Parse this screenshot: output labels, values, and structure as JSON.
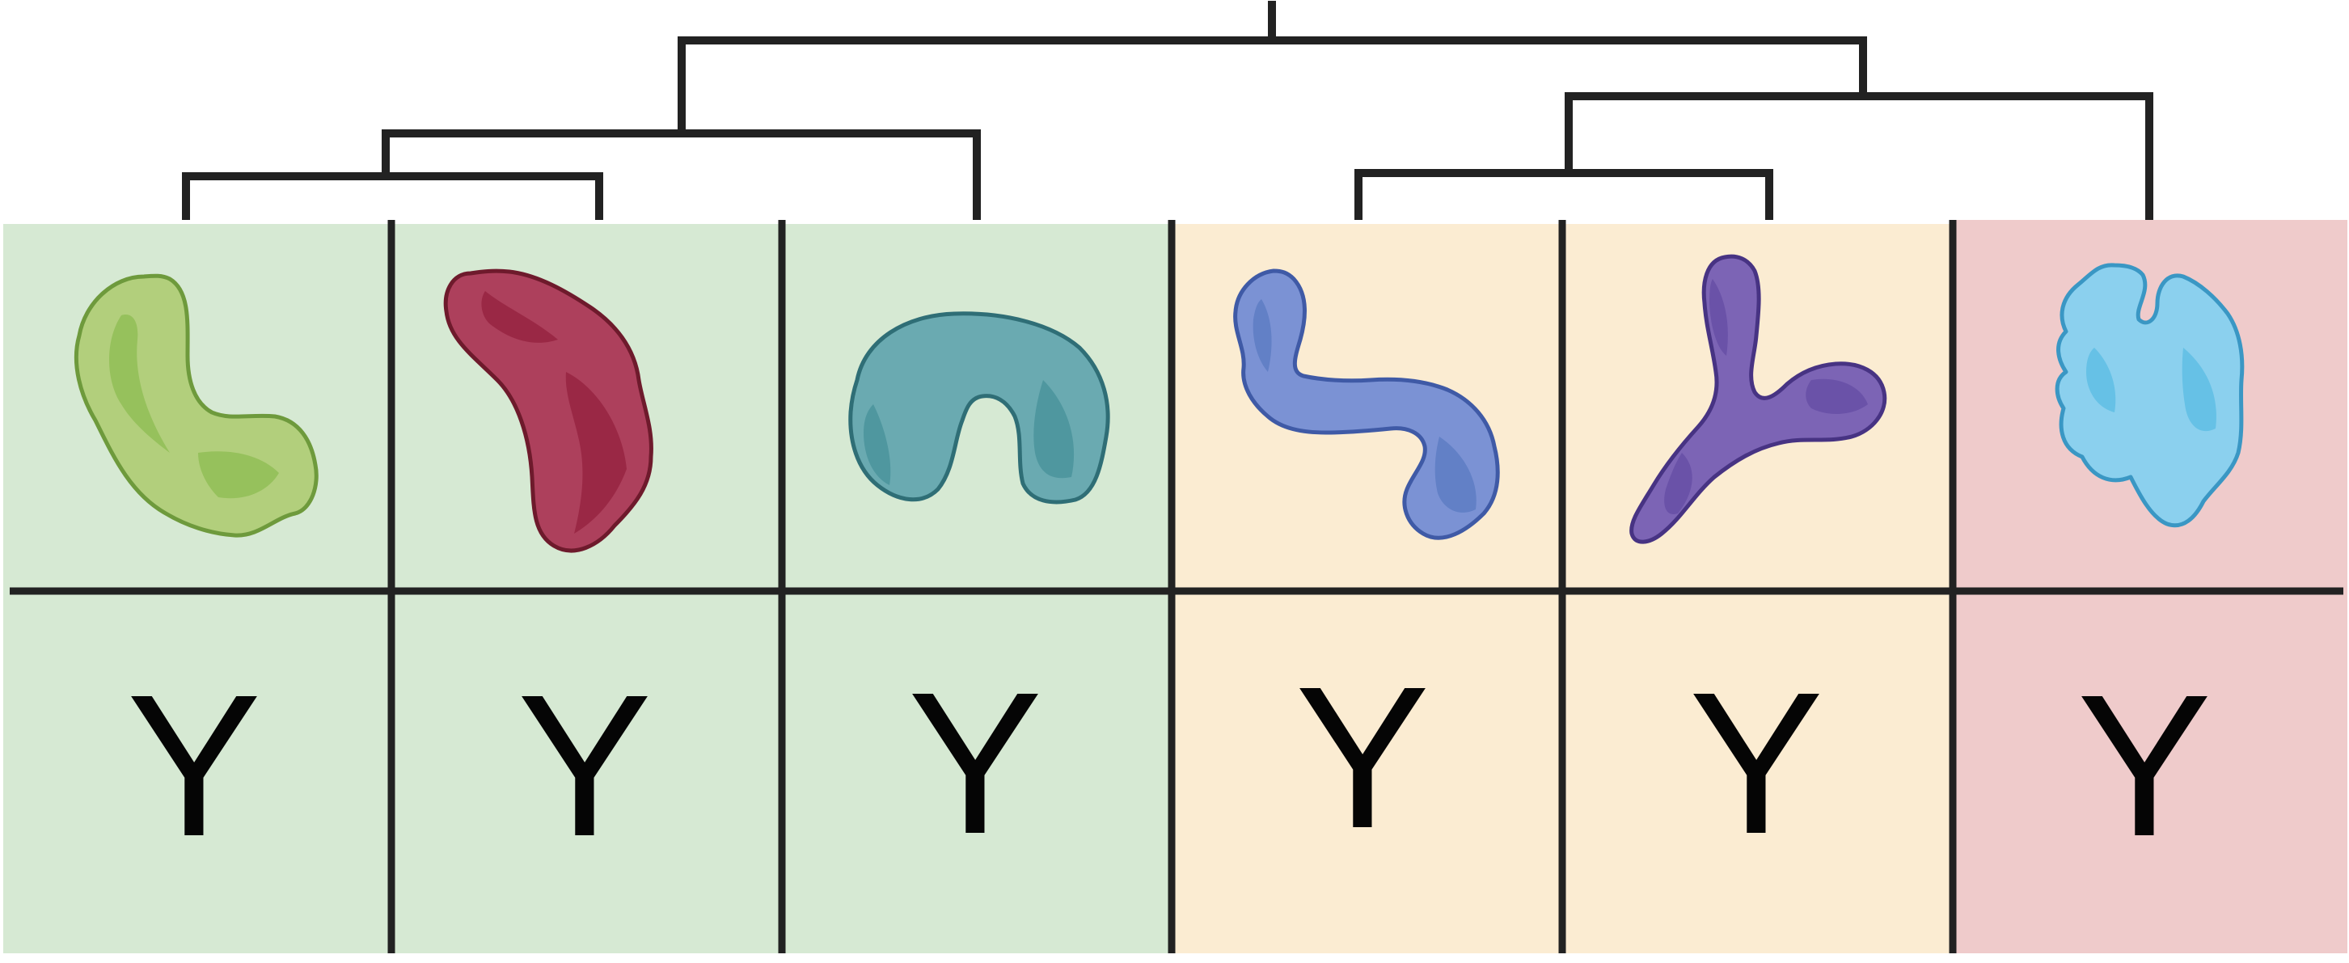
{
  "colors": {
    "green_panel": "#d6e9d3",
    "yellow_panel": "#fbecd2",
    "pink_panel": "#efcbcb",
    "line": "#222222",
    "text": "#050505"
  },
  "columns": [
    {
      "panel": "green_panel",
      "shape": "kidney-blob",
      "fill": "#b2cf7c",
      "shade": "#96c15c",
      "stroke": "#6e9a3c",
      "label": "Y"
    },
    {
      "panel": "green_panel",
      "shape": "bean-blob",
      "fill": "#ad405c",
      "shade": "#9a2845",
      "stroke": "#6e1a2c",
      "label": "Y"
    },
    {
      "panel": "green_panel",
      "shape": "arch-blob",
      "fill": "#6aaab1",
      "shade": "#4f979f",
      "stroke": "#2f6e76",
      "label": "Y"
    },
    {
      "panel": "yellow_panel",
      "shape": "s-curve-blob",
      "fill": "#7b92d4",
      "shade": "#6280c6",
      "stroke": "#3f5aa6",
      "label": "Y"
    },
    {
      "panel": "yellow_panel",
      "shape": "y-branch-blob",
      "fill": "#7c64b5",
      "shade": "#6a52a8",
      "stroke": "#473383",
      "label": "Y"
    },
    {
      "panel": "pink_panel",
      "shape": "lobed-blob",
      "fill": "#8bd0ee",
      "shade": "#66c1e6",
      "stroke": "#3a97c4",
      "label": "Y"
    }
  ]
}
